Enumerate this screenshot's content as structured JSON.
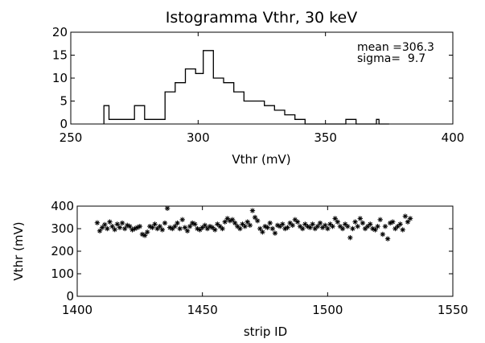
{
  "chart_data": [
    {
      "type": "histogram",
      "title": "Istogramma Vthr, 30 keV",
      "xlabel": "Vthr (mV)",
      "ylabel": "",
      "xlim": [
        250,
        400
      ],
      "ylim": [
        0,
        20
      ],
      "xticks": [
        "250",
        "300",
        "350",
        "400"
      ],
      "yticks": [
        "0",
        "5",
        "10",
        "15",
        "20"
      ],
      "bin_width": 4,
      "bins": [
        {
          "x0": 263,
          "count": 4
        },
        {
          "x0": 265,
          "count": 1
        },
        {
          "x0": 275,
          "count": 4
        },
        {
          "x0": 279,
          "count": 1
        },
        {
          "x0": 287,
          "count": 7
        },
        {
          "x0": 291,
          "count": 9
        },
        {
          "x0": 295,
          "count": 12
        },
        {
          "x0": 299,
          "count": 11
        },
        {
          "x0": 302,
          "count": 16
        },
        {
          "x0": 306,
          "count": 10
        },
        {
          "x0": 310,
          "count": 9
        },
        {
          "x0": 314,
          "count": 7
        },
        {
          "x0": 318,
          "count": 5
        },
        {
          "x0": 322,
          "count": 5
        },
        {
          "x0": 326,
          "count": 4
        },
        {
          "x0": 330,
          "count": 3
        },
        {
          "x0": 334,
          "count": 2
        },
        {
          "x0": 338,
          "count": 1
        },
        {
          "x0": 342,
          "count": 0
        },
        {
          "x0": 346,
          "count": 0
        },
        {
          "x0": 358,
          "count": 1
        },
        {
          "x0": 362,
          "count": 0
        },
        {
          "x0": 370,
          "count": 1
        },
        {
          "x0": 371,
          "count": 0
        }
      ],
      "annotations": [
        {
          "label": "mean =306.3"
        },
        {
          "label": "sigma=  9.7"
        }
      ]
    },
    {
      "type": "scatter",
      "title": "",
      "xlabel": "strip ID",
      "ylabel": "Vthr (mV)",
      "xlim": [
        1400,
        1550
      ],
      "ylim": [
        0,
        400
      ],
      "xticks": [
        "1400",
        "1450",
        "1500",
        "1550"
      ],
      "yticks": [
        "0",
        "100",
        "200",
        "300",
        "400"
      ],
      "marker": "*",
      "points": [
        [
          1408,
          326
        ],
        [
          1409,
          290
        ],
        [
          1410,
          305
        ],
        [
          1411,
          318
        ],
        [
          1412,
          300
        ],
        [
          1413,
          330
        ],
        [
          1414,
          310
        ],
        [
          1415,
          296
        ],
        [
          1416,
          320
        ],
        [
          1417,
          305
        ],
        [
          1418,
          325
        ],
        [
          1419,
          300
        ],
        [
          1420,
          315
        ],
        [
          1421,
          310
        ],
        [
          1422,
          295
        ],
        [
          1423,
          300
        ],
        [
          1424,
          305
        ],
        [
          1425,
          310
        ],
        [
          1426,
          275
        ],
        [
          1427,
          270
        ],
        [
          1428,
          285
        ],
        [
          1429,
          310
        ],
        [
          1430,
          305
        ],
        [
          1431,
          320
        ],
        [
          1432,
          300
        ],
        [
          1433,
          310
        ],
        [
          1434,
          295
        ],
        [
          1435,
          325
        ],
        [
          1436,
          390
        ],
        [
          1437,
          305
        ],
        [
          1438,
          300
        ],
        [
          1439,
          310
        ],
        [
          1440,
          325
        ],
        [
          1441,
          300
        ],
        [
          1442,
          340
        ],
        [
          1443,
          305
        ],
        [
          1444,
          290
        ],
        [
          1445,
          310
        ],
        [
          1446,
          325
        ],
        [
          1447,
          320
        ],
        [
          1448,
          300
        ],
        [
          1449,
          295
        ],
        [
          1450,
          305
        ],
        [
          1451,
          315
        ],
        [
          1452,
          300
        ],
        [
          1453,
          310
        ],
        [
          1454,
          305
        ],
        [
          1455,
          295
        ],
        [
          1456,
          320
        ],
        [
          1457,
          310
        ],
        [
          1458,
          300
        ],
        [
          1459,
          330
        ],
        [
          1460,
          345
        ],
        [
          1461,
          335
        ],
        [
          1462,
          340
        ],
        [
          1463,
          325
        ],
        [
          1464,
          310
        ],
        [
          1465,
          300
        ],
        [
          1466,
          320
        ],
        [
          1467,
          310
        ],
        [
          1468,
          330
        ],
        [
          1469,
          315
        ],
        [
          1470,
          380
        ],
        [
          1471,
          350
        ],
        [
          1472,
          335
        ],
        [
          1473,
          300
        ],
        [
          1474,
          285
        ],
        [
          1475,
          310
        ],
        [
          1476,
          305
        ],
        [
          1477,
          325
        ],
        [
          1478,
          300
        ],
        [
          1479,
          280
        ],
        [
          1480,
          315
        ],
        [
          1481,
          310
        ],
        [
          1482,
          320
        ],
        [
          1483,
          300
        ],
        [
          1484,
          305
        ],
        [
          1485,
          325
        ],
        [
          1486,
          315
        ],
        [
          1487,
          340
        ],
        [
          1488,
          330
        ],
        [
          1489,
          310
        ],
        [
          1490,
          300
        ],
        [
          1491,
          320
        ],
        [
          1492,
          310
        ],
        [
          1493,
          305
        ],
        [
          1494,
          320
        ],
        [
          1495,
          300
        ],
        [
          1496,
          310
        ],
        [
          1497,
          325
        ],
        [
          1498,
          305
        ],
        [
          1499,
          315
        ],
        [
          1500,
          300
        ],
        [
          1501,
          320
        ],
        [
          1502,
          310
        ],
        [
          1503,
          345
        ],
        [
          1504,
          330
        ],
        [
          1505,
          310
        ],
        [
          1506,
          300
        ],
        [
          1507,
          320
        ],
        [
          1508,
          310
        ],
        [
          1509,
          260
        ],
        [
          1510,
          300
        ],
        [
          1511,
          330
        ],
        [
          1512,
          310
        ],
        [
          1513,
          345
        ],
        [
          1514,
          325
        ],
        [
          1515,
          300
        ],
        [
          1516,
          310
        ],
        [
          1517,
          320
        ],
        [
          1518,
          300
        ],
        [
          1519,
          295
        ],
        [
          1520,
          310
        ],
        [
          1521,
          340
        ],
        [
          1522,
          275
        ],
        [
          1523,
          310
        ],
        [
          1524,
          255
        ],
        [
          1525,
          325
        ],
        [
          1526,
          330
        ],
        [
          1527,
          300
        ],
        [
          1528,
          310
        ],
        [
          1529,
          320
        ],
        [
          1530,
          295
        ],
        [
          1531,
          355
        ],
        [
          1532,
          330
        ],
        [
          1533,
          345
        ]
      ]
    }
  ]
}
